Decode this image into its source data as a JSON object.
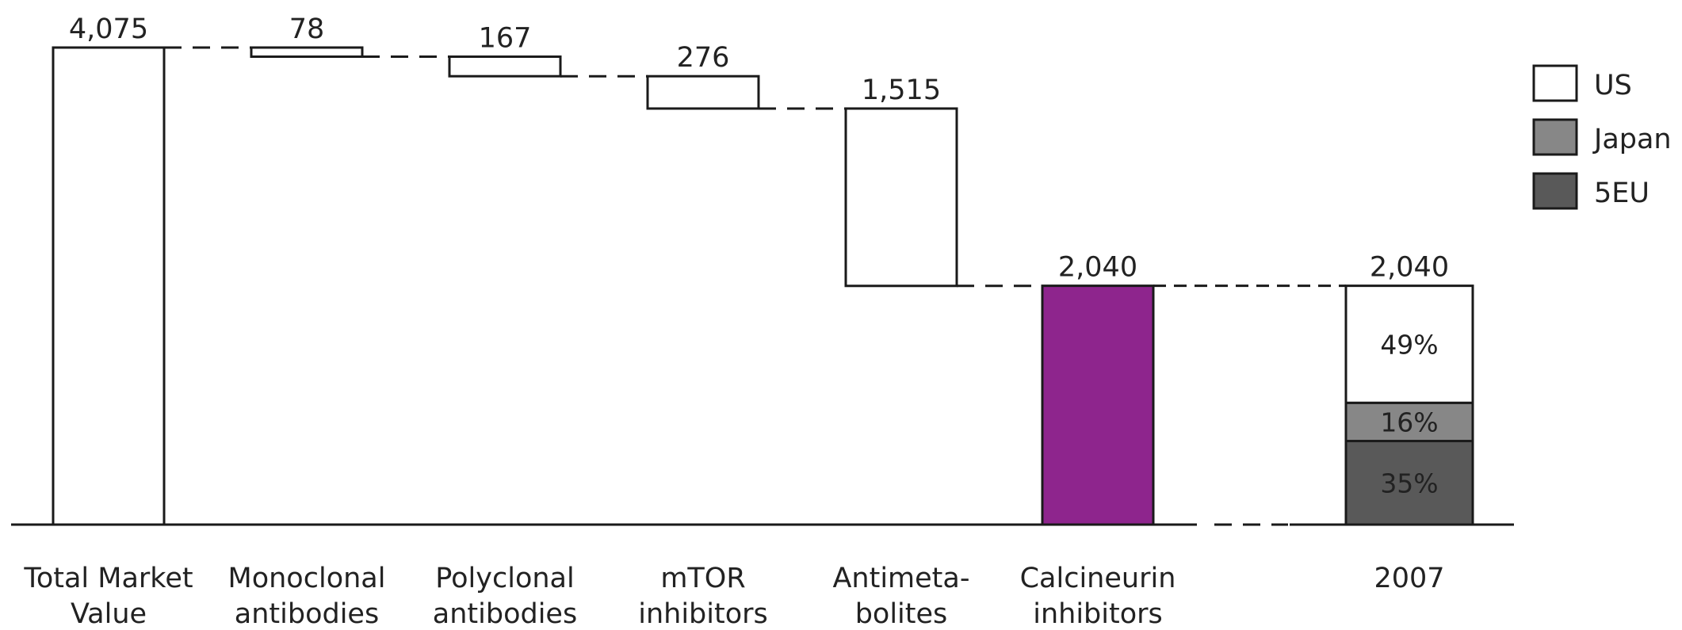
{
  "chart_data": {
    "type": "waterfall",
    "categories": [
      {
        "line1": "Total Market",
        "line2": "Value",
        "value": 4075,
        "label": "4,075",
        "kind": "total"
      },
      {
        "line1": "Monoclonal",
        "line2": "antibodies",
        "value": 78,
        "label": "78",
        "kind": "step"
      },
      {
        "line1": "Polyclonal",
        "line2": "antibodies",
        "value": 167,
        "label": "167",
        "kind": "step"
      },
      {
        "line1": "mTOR",
        "line2": "inhibitors",
        "value": 276,
        "label": "276",
        "kind": "step"
      },
      {
        "line1": "Antimeta-",
        "line2": "bolites",
        "value": 1515,
        "label": "1,515",
        "kind": "step"
      },
      {
        "line1": "Calcineurin",
        "line2": "inhibitors",
        "value": 2040,
        "label": "2,040",
        "kind": "highlight"
      }
    ],
    "breakdown": {
      "category": "2007",
      "total": 2040,
      "total_label": "2,040",
      "segments": [
        {
          "name": "5EU",
          "percent": 35,
          "label": "35%",
          "color": "#595959"
        },
        {
          "name": "Japan",
          "percent": 16,
          "label": "16%",
          "color": "#878787"
        },
        {
          "name": "US",
          "percent": 49,
          "label": "49%",
          "color": "#ffffff"
        }
      ]
    },
    "legend": [
      {
        "name": "US",
        "color": "#ffffff"
      },
      {
        "name": "Japan",
        "color": "#878787"
      },
      {
        "name": "5EU",
        "color": "#595959"
      }
    ],
    "legend_position": "right",
    "ylim": [
      0,
      4075
    ],
    "grid": false,
    "colors": {
      "highlight": "#8e258d",
      "outline": "#1a1a1a",
      "pct_text_dark": "#222222",
      "pct_text_light": "#ffffff"
    }
  }
}
